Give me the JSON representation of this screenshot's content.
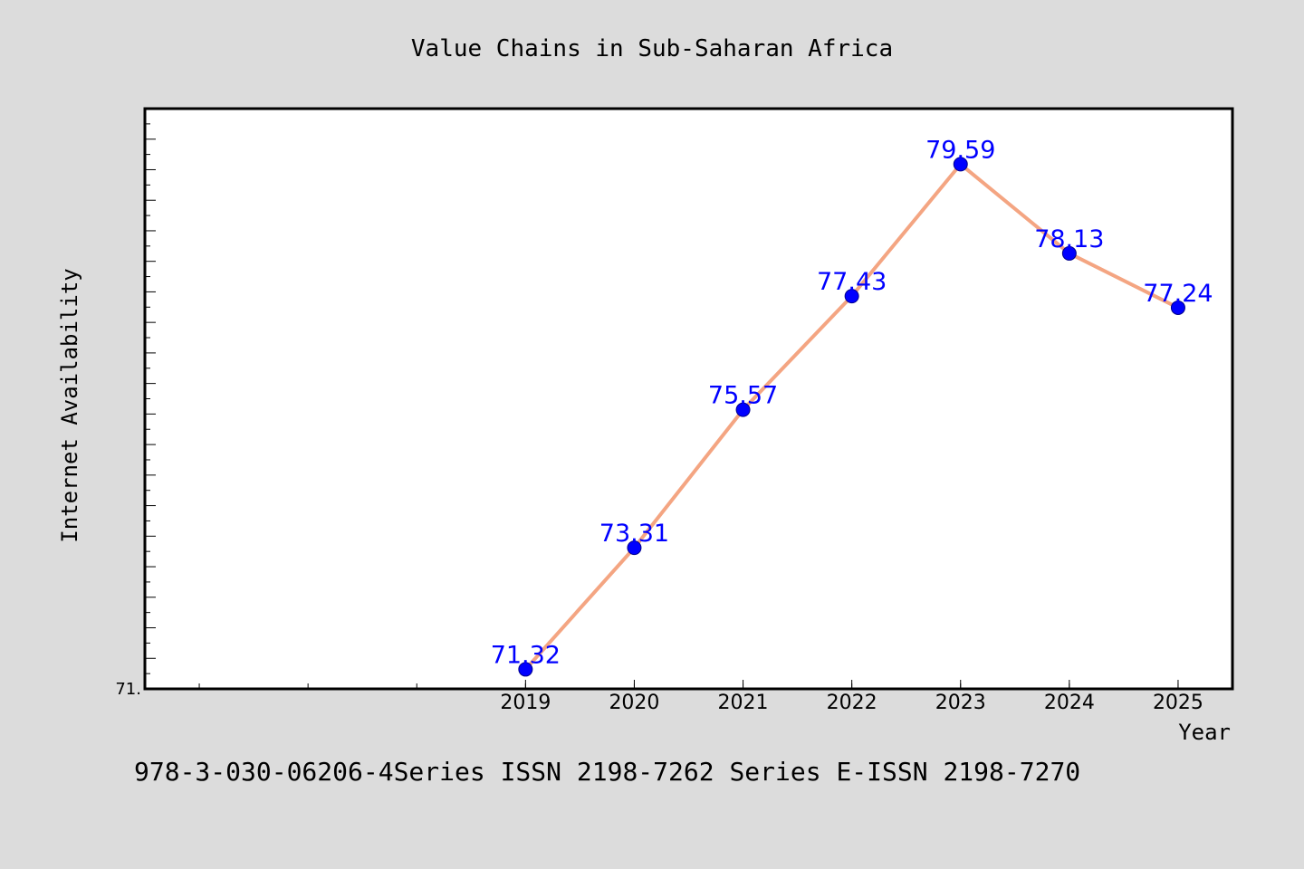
{
  "colors": {
    "background": "#dcdcdc",
    "plot_background": "#ffffff",
    "line": "#f4a582",
    "marker": "#0000ff",
    "data_label": "#0000ff",
    "text": "#000000"
  },
  "footer_text": "978-3-030-06206-4Series ISSN 2198-7262 Series E-ISSN 2198-7270",
  "chart_data": {
    "type": "line",
    "title": "Value Chains in Sub-Saharan Africa",
    "xlabel": "Year",
    "ylabel": "Internet Availability",
    "x_tick_labels": [
      "2019",
      "2020",
      "2021",
      "2022",
      "2023",
      "2024",
      "2025"
    ],
    "y_tick_labels": [
      "71."
    ],
    "xlim": [
      2015.5,
      2025.5
    ],
    "ylim": [
      71.0,
      80.5
    ],
    "grid": false,
    "legend": "none",
    "series": [
      {
        "x": [
          2019,
          2020,
          2021,
          2022,
          2023,
          2024,
          2025
        ],
        "values": [
          71.32,
          73.31,
          75.57,
          77.43,
          79.59,
          78.13,
          77.24
        ],
        "labels": [
          "71.32",
          "73.31",
          "75.57",
          "77.43",
          "79.59",
          "78.13",
          "77.24"
        ]
      }
    ]
  }
}
